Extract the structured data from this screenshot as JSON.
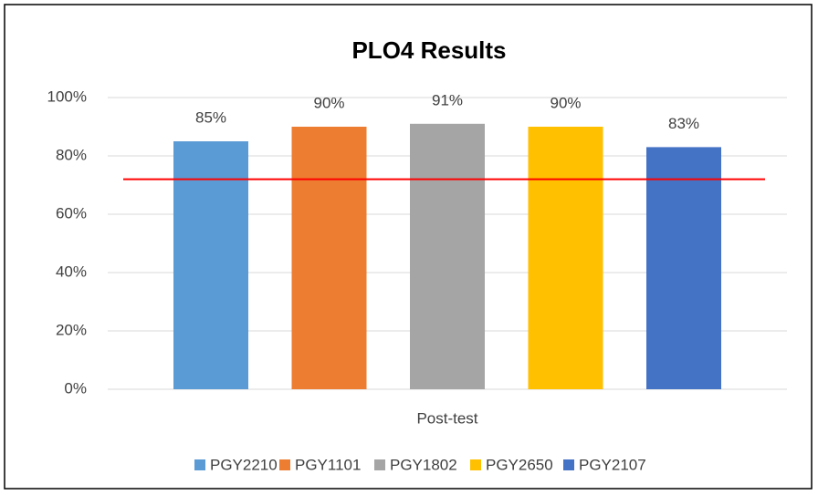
{
  "chart_data": {
    "type": "bar",
    "title": "PLO4 Results",
    "categories": [
      "Post-test"
    ],
    "series": [
      {
        "name": "PGY2210",
        "color": "#5b9bd5",
        "values": [
          85
        ],
        "value_labels": [
          "85%"
        ]
      },
      {
        "name": "PGY1101",
        "color": "#ed7d31",
        "values": [
          90
        ],
        "value_labels": [
          "90%"
        ]
      },
      {
        "name": "PGY1802",
        "color": "#a5a5a5",
        "values": [
          91
        ],
        "value_labels": [
          "91%"
        ]
      },
      {
        "name": "PGY2650",
        "color": "#ffc000",
        "values": [
          90
        ],
        "value_labels": [
          "90%"
        ]
      },
      {
        "name": "PGY2107",
        "color": "#4472c4",
        "values": [
          83
        ],
        "value_labels": [
          "83%"
        ]
      }
    ],
    "reference_line": {
      "value": 72,
      "color": "#ff0000"
    },
    "ylim": [
      0,
      100
    ],
    "yticks": [
      {
        "value": 0,
        "label": "0%"
      },
      {
        "value": 20,
        "label": "20%"
      },
      {
        "value": 40,
        "label": "40%"
      },
      {
        "value": 60,
        "label": "60%"
      },
      {
        "value": 80,
        "label": "80%"
      },
      {
        "value": 100,
        "label": "100%"
      }
    ],
    "grid": true,
    "legend": "bottom"
  }
}
